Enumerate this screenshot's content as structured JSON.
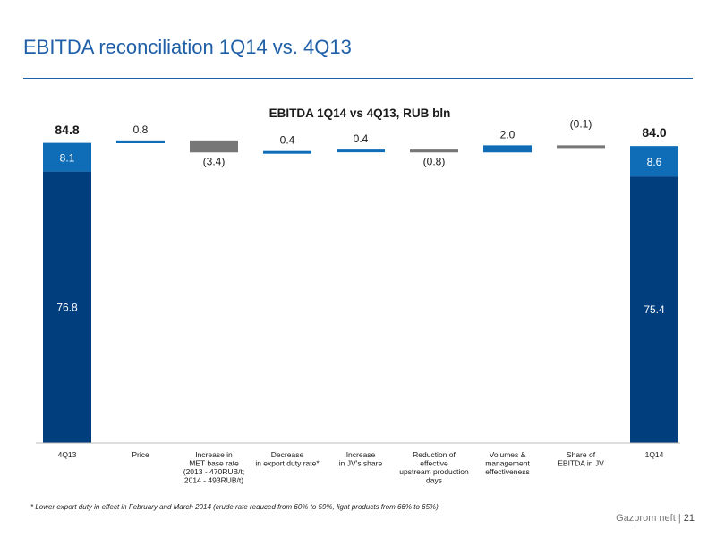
{
  "header": {
    "title": "EBITDA reconciliation 1Q14 vs. 4Q13"
  },
  "footnote": "* Lower export duty in effect in February and March 2014 (crude rate reduced from 60% to 59%, light products from 66% to 65%)",
  "footer": {
    "company": "Gazprom neft |",
    "page": "21"
  },
  "colors": {
    "dark_blue": "#003e7e",
    "mid_blue": "#0f6db8",
    "grey": "#777777",
    "brand_blue": "#1f5fa8"
  },
  "chart_data": {
    "type": "bar",
    "subtype": "waterfall",
    "title": "EBITDA  1Q14 vs 4Q13, RUB bln",
    "categories": [
      [
        "4Q13"
      ],
      [
        "Price"
      ],
      [
        "Increase in",
        "MET base rate",
        "(2013 - 470RUB/t;",
        "2014 - 493RUB/t)"
      ],
      [
        "Decrease",
        "in export duty rate*"
      ],
      [
        "Increase",
        "in JV's share"
      ],
      [
        "Reduction of",
        "effective",
        "upstream production",
        "days"
      ],
      [
        "Volumes &",
        "management",
        "effectiveness"
      ],
      [
        "Share of",
        "EBITDA in JV"
      ],
      [
        "1Q14"
      ]
    ],
    "totals": [
      {
        "index": 0,
        "total": 84.8,
        "total_label": "84.8",
        "segments": [
          {
            "value": 76.8,
            "label": "76.8",
            "color": "#003e7e"
          },
          {
            "value": 8.1,
            "label": "8.1",
            "color": "#0f6db8"
          }
        ]
      },
      {
        "index": 8,
        "total": 84.0,
        "total_label": "84.0",
        "segments": [
          {
            "value": 75.4,
            "label": "75.4",
            "color": "#003e7e"
          },
          {
            "value": 8.6,
            "label": "8.6",
            "color": "#0f6db8"
          }
        ]
      }
    ],
    "deltas": [
      {
        "index": 1,
        "value": 0.8,
        "label": "0.8"
      },
      {
        "index": 2,
        "value": -3.4,
        "label": "(3.4)"
      },
      {
        "index": 3,
        "value": 0.4,
        "label": "0.4"
      },
      {
        "index": 4,
        "value": 0.4,
        "label": "0.4"
      },
      {
        "index": 5,
        "value": -0.8,
        "label": "(0.8)"
      },
      {
        "index": 6,
        "value": 2.0,
        "label": "2.0"
      },
      {
        "index": 7,
        "value": -0.1,
        "label": "(0.1)"
      }
    ],
    "ylim": [
      0,
      87
    ]
  }
}
